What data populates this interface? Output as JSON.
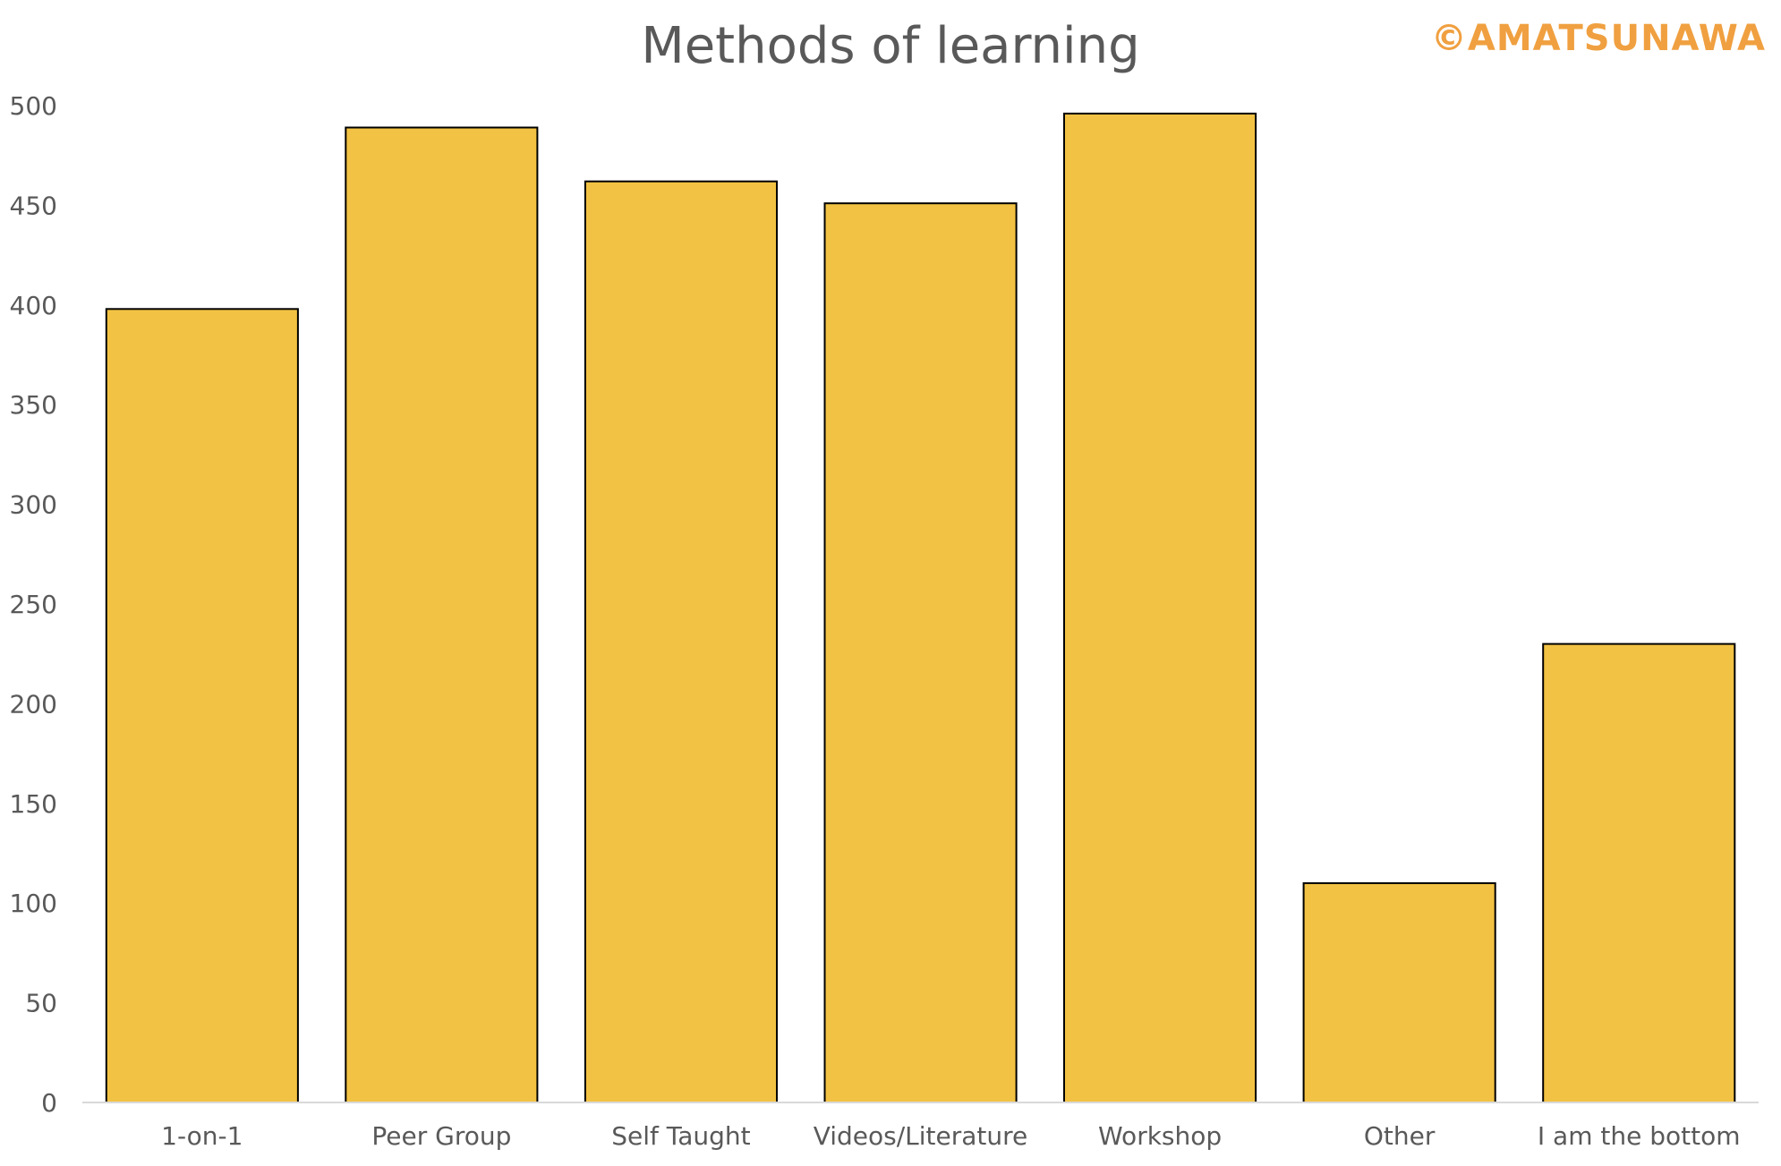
{
  "colors": {
    "bar_fill": "#F2C244",
    "bar_stroke": "#000000",
    "title": "#595959",
    "tick_text": "#595959",
    "axis_line": "#d9d9d9",
    "watermark": "#F0A040"
  },
  "watermark": "©AMATSUNAWA",
  "chart_data": {
    "type": "bar",
    "title": "Methods of learning",
    "xlabel": "",
    "ylabel": "",
    "categories": [
      "1-on-1",
      "Peer Group",
      "Self Taught",
      "Videos/Literature",
      "Workshop",
      "Other",
      "I am the bottom"
    ],
    "values": [
      398,
      489,
      462,
      451,
      496,
      110,
      230
    ],
    "ylim": [
      0,
      500
    ],
    "yticks": [
      0,
      50,
      100,
      150,
      200,
      250,
      300,
      350,
      400,
      450,
      500
    ],
    "ytick_labels": [
      "0",
      "50",
      "100",
      "150",
      "200",
      "250",
      "300",
      "350",
      "400",
      "450",
      "500"
    ],
    "grid": false,
    "legend": "none"
  }
}
